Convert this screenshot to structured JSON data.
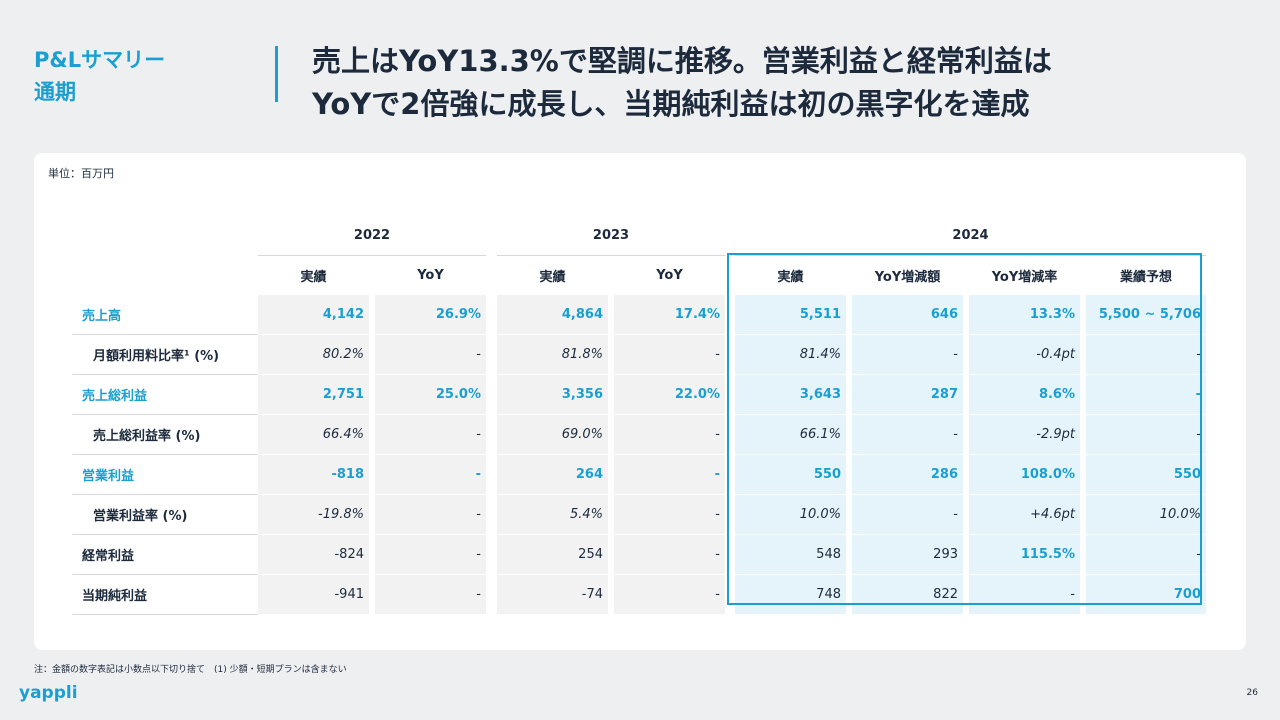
{
  "header": {
    "section_line1": "P&Lサマリー",
    "section_line2": "通期",
    "headline_line1": "売上はYoY13.3%で堅調に推移。営業利益と経常利益は",
    "headline_line2": "YoYで2倍強に成長し、当期純利益は初の黒字化を達成"
  },
  "unit": "単位：百万円",
  "table": {
    "years": [
      "2022",
      "2023",
      "2024"
    ],
    "headers": {
      "y2022": [
        "実績",
        "YoY"
      ],
      "y2023": [
        "実績",
        "YoY"
      ],
      "y2024": [
        "実績",
        "YoY増減額",
        "YoY増減率",
        "業績予想"
      ]
    },
    "rows": [
      {
        "label": "売上高",
        "v22": "4,142",
        "y22": "26.9%",
        "v23": "4,864",
        "y23": "17.4%",
        "v24": "5,511",
        "d24": "646",
        "r24": "13.3%",
        "f24": "5,500 ~ 5,706"
      },
      {
        "label": "月額利用料比率¹ (%)",
        "v22": "80.2%",
        "y22": "-",
        "v23": "81.8%",
        "y23": "-",
        "v24": "81.4%",
        "d24": "-",
        "r24": "-0.4pt",
        "f24": "-"
      },
      {
        "label": "売上総利益",
        "v22": "2,751",
        "y22": "25.0%",
        "v23": "3,356",
        "y23": "22.0%",
        "v24": "3,643",
        "d24": "287",
        "r24": "8.6%",
        "f24": "-"
      },
      {
        "label": "売上総利益率 (%)",
        "v22": "66.4%",
        "y22": "-",
        "v23": "69.0%",
        "y23": "-",
        "v24": "66.1%",
        "d24": "-",
        "r24": "-2.9pt",
        "f24": "-"
      },
      {
        "label": "営業利益",
        "v22": "-818",
        "y22": "-",
        "v23": "264",
        "y23": "-",
        "v24": "550",
        "d24": "286",
        "r24": "108.0%",
        "f24": "550"
      },
      {
        "label": "営業利益率 (%)",
        "v22": "-19.8%",
        "y22": "-",
        "v23": "5.4%",
        "y23": "-",
        "v24": "10.0%",
        "d24": "-",
        "r24": "+4.6pt",
        "f24": "10.0%"
      },
      {
        "label": "経常利益",
        "v22": "-824",
        "y22": "-",
        "v23": "254",
        "y23": "-",
        "v24": "548",
        "d24": "293",
        "r24": "115.5%",
        "f24": "-"
      },
      {
        "label": "当期純利益",
        "v22": "-941",
        "y22": "-",
        "v23": "-74",
        "y23": "-",
        "v24": "748",
        "d24": "822",
        "r24": "-",
        "f24": "700"
      }
    ]
  },
  "footnote": "注：金額の数字表記は小数点以下切り捨て　(1) 少額・短期プランは含まない",
  "logo_text": "yappli",
  "page_number": "26",
  "colors": {
    "accent": "#1a9fd0",
    "text": "#1c2a3c",
    "cell_gray": "#f2f2f2",
    "cell_blue": "#e5f4fb",
    "background": "#eeeff1"
  }
}
